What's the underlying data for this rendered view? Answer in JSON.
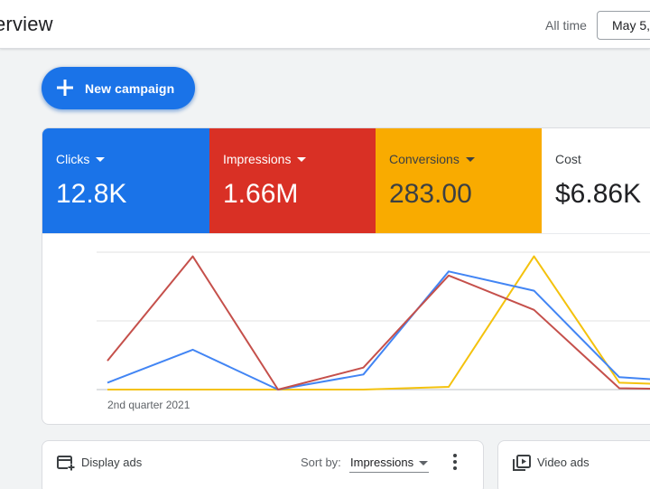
{
  "header": {
    "title": "erview",
    "range_label": "All time",
    "date_value": "May 5,"
  },
  "new_campaign": {
    "label": "New campaign",
    "icon": "plus-icon"
  },
  "metrics": [
    {
      "label": "Clicks",
      "value": "12.8K",
      "color": "#1a73e8"
    },
    {
      "label": "Impressions",
      "value": "1.66M",
      "color": "#d93025"
    },
    {
      "label": "Conversions",
      "value": "283.00",
      "color": "#f9ab00"
    },
    {
      "label": "Cost",
      "value": "$6.86K",
      "color": "#ffffff"
    }
  ],
  "chart_data": {
    "type": "line",
    "x": [
      0,
      1,
      2,
      3,
      4,
      5,
      6,
      7
    ],
    "xlabel": "2nd quarter 2021",
    "ylim": [
      0,
      100
    ],
    "grid": true,
    "series": [
      {
        "name": "Clicks",
        "color": "#4285f4",
        "values": [
          5,
          29,
          0,
          11,
          86,
          72,
          9,
          5
        ]
      },
      {
        "name": "Impressions",
        "color": "#c5504b",
        "values": [
          21,
          97,
          0,
          16,
          83,
          58,
          1,
          0
        ]
      },
      {
        "name": "Conversions",
        "color": "#f4c20d",
        "values": [
          0,
          0,
          0,
          0,
          2,
          97,
          5,
          3
        ]
      }
    ]
  },
  "panels": {
    "display": {
      "title": "Display ads",
      "icon": "display-ads-icon",
      "sort_label": "Sort by:",
      "sort_value": "Impressions",
      "menu_icon": "more-vert-icon"
    },
    "video": {
      "title": "Video ads",
      "icon": "video-ads-icon"
    }
  }
}
